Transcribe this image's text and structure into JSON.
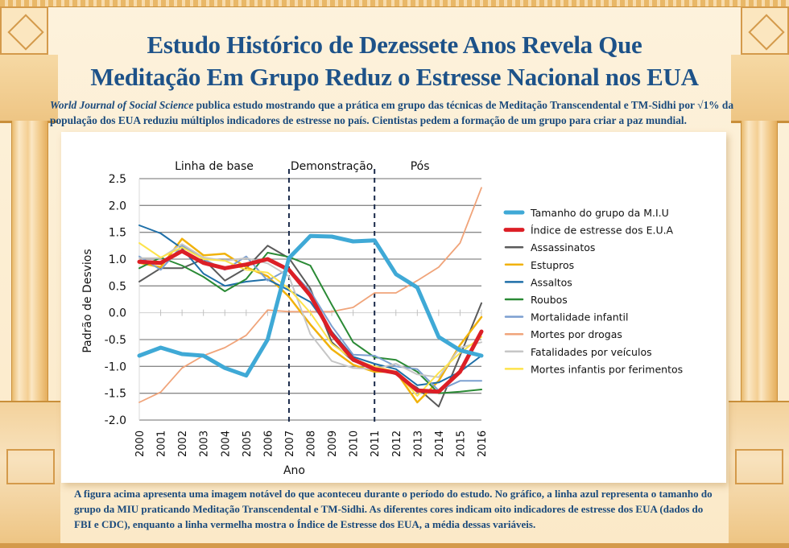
{
  "title_line1": "Estudo Histórico de Dezessete Anos Revela Que",
  "title_line2": "Meditação Em Grupo Reduz o Estresse Nacional nos EUA",
  "subtitle_journal": "World Journal of Social Science",
  "subtitle_rest": " publica estudo mostrando que a prática em grupo das técnicas de Meditação Transcendental e TM-Sidhi por √1% da população dos EUA reduziu múltiplos indicadores de estresse no país. Cientistas pedem a formação de um grupo para criar a paz mundial.",
  "caption": "A figura acima apresenta uma imagem notável do que aconteceu durante o período do estudo. No gráfico, a linha azul  representa o tamanho do grupo da MIU praticando Meditação Transcendental e TM-Sidhi. As diferentes cores indicam oito indicadores de estresse dos EUA (dados do FBI e CDC), enquanto a linha vermelha mostra o Índice de Estresse dos EUA, a média dessas variáveis.",
  "chart_data": {
    "type": "line",
    "title": "",
    "xlabel": "Ano",
    "ylabel": "Padrão de Desvios",
    "x": [
      2000,
      2001,
      2002,
      2003,
      2004,
      2005,
      2006,
      2007,
      2008,
      2009,
      2010,
      2011,
      2012,
      2013,
      2014,
      2015,
      2016
    ],
    "ylim": [
      -2.0,
      2.5
    ],
    "yticks": [
      2.5,
      2.0,
      1.5,
      1.0,
      0.5,
      0.0,
      -0.5,
      -1.0,
      -1.5,
      -2.0
    ],
    "ytick_labels": [
      "2.5",
      "2.0",
      "1.5",
      "1.0",
      "0.5",
      "0.0",
      "-0.5",
      "-1.0",
      "-1.5",
      "-2.0"
    ],
    "grid": true,
    "legend_position": "right",
    "period_labels": [
      {
        "label": "Linha de base",
        "from": 2000,
        "to": 2007
      },
      {
        "label": "Demonstração",
        "from": 2007,
        "to": 2011
      },
      {
        "label": "Pós",
        "from": 2011,
        "to": 2016
      }
    ],
    "dividers": [
      2007,
      2011
    ],
    "series": [
      {
        "name": "Tamanho do grupo da M.I.U",
        "color": "#3fa9d6",
        "width": 5,
        "values": [
          -0.8,
          -0.65,
          -0.77,
          -0.8,
          -1.03,
          -1.17,
          -0.5,
          1.02,
          1.43,
          1.42,
          1.33,
          1.35,
          0.72,
          0.47,
          -0.45,
          -0.7,
          -0.8
        ]
      },
      {
        "name": "Índice de estresse dos E.U.A",
        "color": "#dc1f26",
        "width": 5,
        "values": [
          0.95,
          0.93,
          1.15,
          0.93,
          0.83,
          0.9,
          1.0,
          0.8,
          0.32,
          -0.4,
          -0.87,
          -1.05,
          -1.12,
          -1.45,
          -1.47,
          -1.1,
          -0.35
        ]
      },
      {
        "name": "Assassinatos",
        "color": "#5a5a5a",
        "width": 2,
        "values": [
          0.58,
          0.83,
          0.83,
          1.0,
          0.6,
          0.83,
          1.25,
          1.02,
          0.45,
          -0.55,
          -0.9,
          -1.02,
          -1.15,
          -1.4,
          -1.75,
          -0.8,
          0.18
        ]
      },
      {
        "name": "Estupros",
        "color": "#f1b20c",
        "width": 2.5,
        "values": [
          0.93,
          0.85,
          1.38,
          1.07,
          1.1,
          0.85,
          0.68,
          0.3,
          -0.22,
          -0.68,
          -0.97,
          -1.1,
          -1.1,
          -1.67,
          -1.27,
          -0.6,
          -0.08
        ]
      },
      {
        "name": "Assaltos",
        "color": "#1e6fa8",
        "width": 2,
        "values": [
          1.63,
          1.48,
          1.2,
          0.73,
          0.5,
          0.58,
          0.62,
          0.42,
          0.2,
          -0.35,
          -0.82,
          -0.95,
          -1.05,
          -1.35,
          -1.3,
          -1.1,
          -0.8
        ]
      },
      {
        "name": "Roubos",
        "color": "#2a8a35",
        "width": 2,
        "values": [
          0.83,
          1.03,
          0.88,
          0.67,
          0.4,
          0.63,
          1.12,
          1.04,
          0.88,
          0.15,
          -0.55,
          -0.83,
          -0.88,
          -1.1,
          -1.5,
          -1.47,
          -1.43
        ]
      },
      {
        "name": "Mortalidade infantil",
        "color": "#7b9fd0",
        "width": 2,
        "values": [
          1.05,
          0.8,
          1.25,
          1.0,
          0.8,
          1.05,
          0.6,
          0.82,
          0.4,
          -0.25,
          -0.78,
          -0.8,
          -1.0,
          -1.05,
          -1.45,
          -1.27,
          -1.27
        ]
      },
      {
        "name": "Mortes por drogas",
        "color": "#f0a47a",
        "width": 1.8,
        "values": [
          -1.67,
          -1.48,
          -1.03,
          -0.8,
          -0.65,
          -0.42,
          0.05,
          0.02,
          0.02,
          0.02,
          0.1,
          0.37,
          0.37,
          0.6,
          0.85,
          1.3,
          2.33
        ]
      },
      {
        "name": "Fatalidades por veículos",
        "color": "#c6c6c6",
        "width": 2,
        "values": [
          1.02,
          1.02,
          1.28,
          1.03,
          0.97,
          1.02,
          0.92,
          0.68,
          -0.4,
          -0.9,
          -1.03,
          -1.05,
          -0.95,
          -1.15,
          -1.2,
          -0.65,
          -0.55
        ]
      },
      {
        "name": "Mortes infantis por ferimentos",
        "color": "#fde34b",
        "width": 2,
        "values": [
          1.3,
          1.03,
          1.22,
          1.0,
          0.97,
          0.8,
          0.75,
          0.45,
          0.0,
          -0.58,
          -0.87,
          -1.0,
          -1.1,
          -1.55,
          -1.12,
          -0.75,
          -0.45
        ]
      }
    ]
  }
}
